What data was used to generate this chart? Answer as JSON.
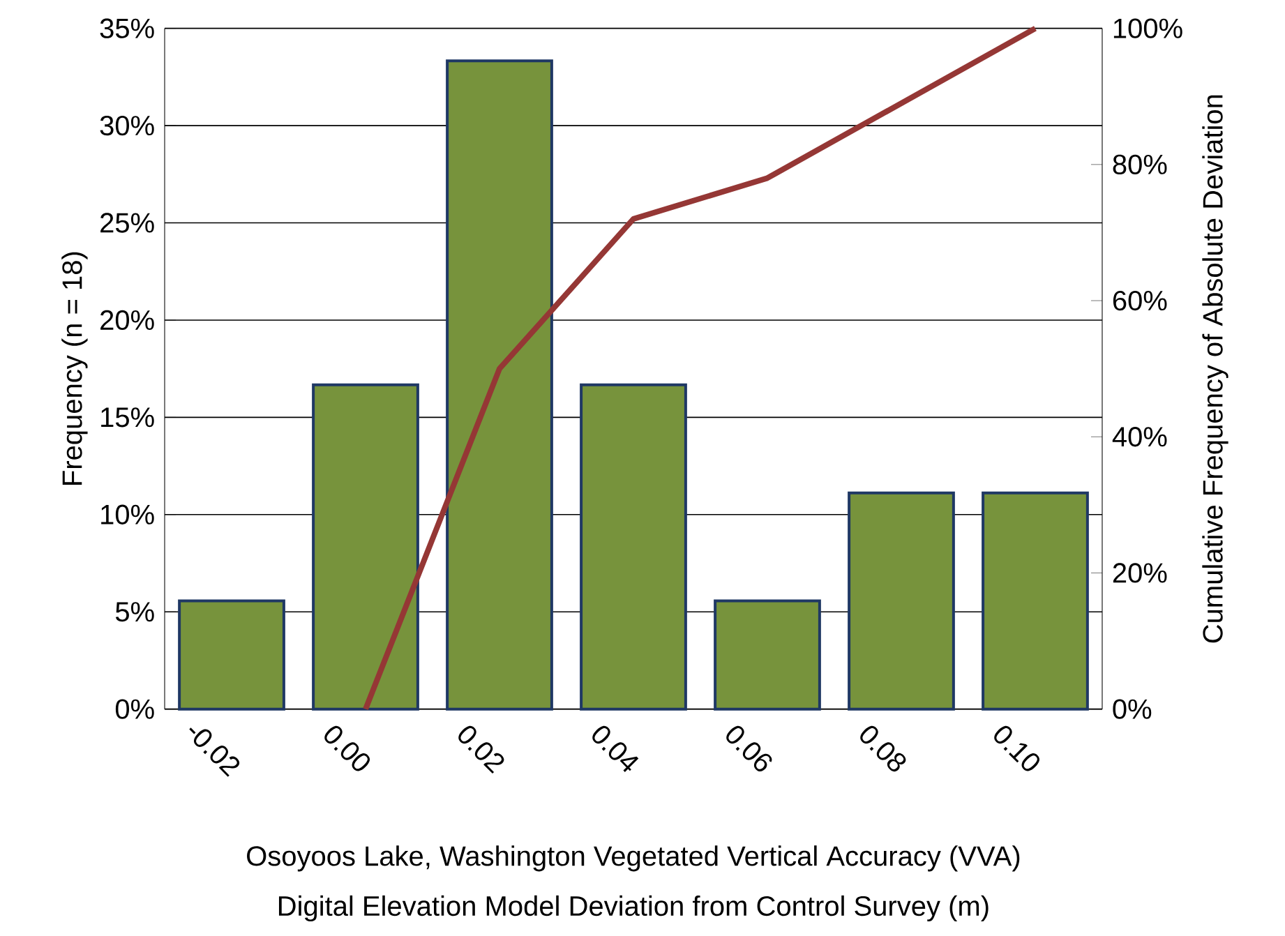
{
  "chart_data": {
    "type": "bar",
    "categories": [
      "-0.02",
      "0.00",
      "0.02",
      "0.04",
      "0.06",
      "0.08",
      "0.10"
    ],
    "series": [
      {
        "color": "#77933c",
        "values": [
          5.56,
          16.67,
          33.33,
          16.67,
          5.56,
          11.11,
          11.11
        ]
      },
      {
        "type": "line",
        "axis": "y2",
        "color": "#953735",
        "values": [
          null,
          0,
          50,
          72,
          78,
          89,
          100
        ]
      }
    ],
    "ylabel": "Frequency (n = 18)",
    "y2label": "Cumulative Frequency of Absolute Deviation",
    "xlabel": "Osoyoos Lake, Washington Vegetated Vertical Accuracy (VVA)",
    "annotations": [
      "Digital Elevation Model Deviation from Control Survey (m)"
    ],
    "ylim": [
      0,
      35
    ],
    "yticks": [
      {
        "value": 0,
        "label": "0%"
      },
      {
        "value": 5,
        "label": "5%"
      },
      {
        "value": 10,
        "label": "10%"
      },
      {
        "value": 15,
        "label": "15%"
      },
      {
        "value": 20,
        "label": "20%"
      },
      {
        "value": 25,
        "label": "25%"
      },
      {
        "value": 30,
        "label": "30%"
      },
      {
        "value": 35,
        "label": "35%"
      }
    ],
    "y2lim": [
      0,
      100
    ],
    "y2ticks": [
      {
        "value": 0,
        "label": "0%"
      },
      {
        "value": 20,
        "label": "20%"
      },
      {
        "value": 40,
        "label": "40%"
      },
      {
        "value": 60,
        "label": "60%"
      },
      {
        "value": 80,
        "label": "80%"
      },
      {
        "value": 100,
        "label": "100%"
      }
    ],
    "grid": "y",
    "marker": "none",
    "line_style": "solid"
  }
}
